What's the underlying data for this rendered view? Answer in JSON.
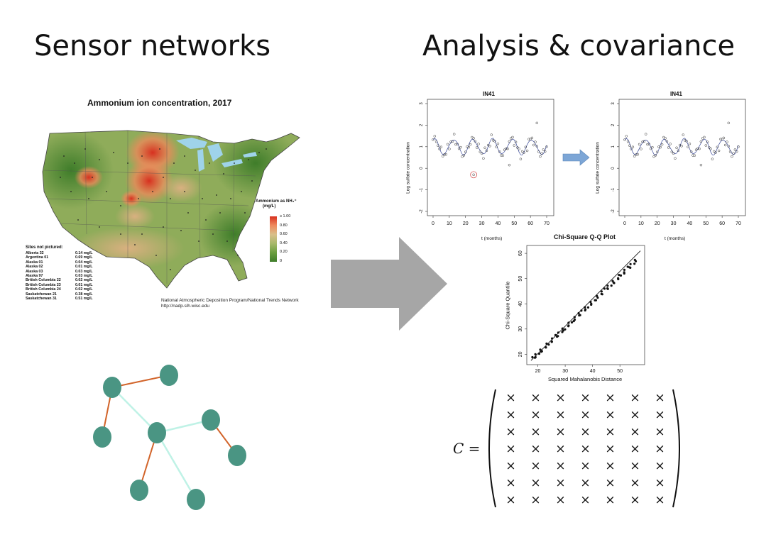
{
  "headings": {
    "left": "Sensor networks",
    "right": "Analysis & covariance"
  },
  "map": {
    "title": "Ammonium ion concentration, 2017",
    "legend_title_line1": "Ammonium as NH₄⁺",
    "legend_title_line2": "(mg/L)",
    "legend_labels": [
      "≥ 1.00",
      "0.80",
      "0.60",
      "0.40",
      "0.20",
      "0"
    ],
    "legend_colors": [
      "#d7301f",
      "#ee8a5e",
      "#d9c08a",
      "#a8b86a",
      "#6b9e3f",
      "#3f7d2a"
    ],
    "sites_header": "Sites not pictured:",
    "sites": [
      {
        "name": "Alberta 32",
        "value": "0.14 mg/L"
      },
      {
        "name": "Argentina 01",
        "value": "0.69 mg/L"
      },
      {
        "name": "Alaska 01",
        "value": "0.04 mg/L"
      },
      {
        "name": "Alaska 02",
        "value": "0.01 mg/L"
      },
      {
        "name": "Alaska 03",
        "value": "0.03 mg/L"
      },
      {
        "name": "Alaska 97",
        "value": "0.03 mg/L"
      },
      {
        "name": "British Columbia 22",
        "value": "0.02 mg/L"
      },
      {
        "name": "British Columbia 23",
        "value": "0.01 mg/L"
      },
      {
        "name": "British Columbia 24",
        "value": "0.02 mg/L"
      },
      {
        "name": "Saskatchewan 21",
        "value": "0.38 mg/L"
      },
      {
        "name": "Saskatchewan 31",
        "value": "0.51 mg/L"
      }
    ],
    "credit_line1": "National Atmospheric Deposition Program/National Trends Network",
    "credit_line2": "http://nadp.slh.wisc.edu"
  },
  "ts_plots": {
    "title": "IN41",
    "ylabel": "Log sulfate concentration",
    "xlabel": "t (months)",
    "x_ticks": [
      "0",
      "10",
      "20",
      "30",
      "40",
      "50",
      "60",
      "70"
    ],
    "y_ticks": [
      "-2",
      "-1",
      "0",
      "1",
      "2",
      "3"
    ]
  },
  "qq": {
    "title": "Chi-Square Q-Q Plot",
    "xlabel": "Squared Mahalanobis Distance",
    "ylabel": "Chi-Square Quantile",
    "x_ticks": [
      "20",
      "30",
      "40",
      "50"
    ],
    "y_ticks": [
      "20",
      "30",
      "40",
      "50",
      "60"
    ]
  },
  "matrix": {
    "lhs": "C =",
    "cell": "×",
    "rows": 7,
    "cols": 7
  },
  "colors": {
    "node": "#4a9583",
    "edge_orange": "#d2642a",
    "edge_cyan": "#bff2e6",
    "flow_arrow": "#a6a6a6",
    "small_arrow": "#7da6d6"
  }
}
